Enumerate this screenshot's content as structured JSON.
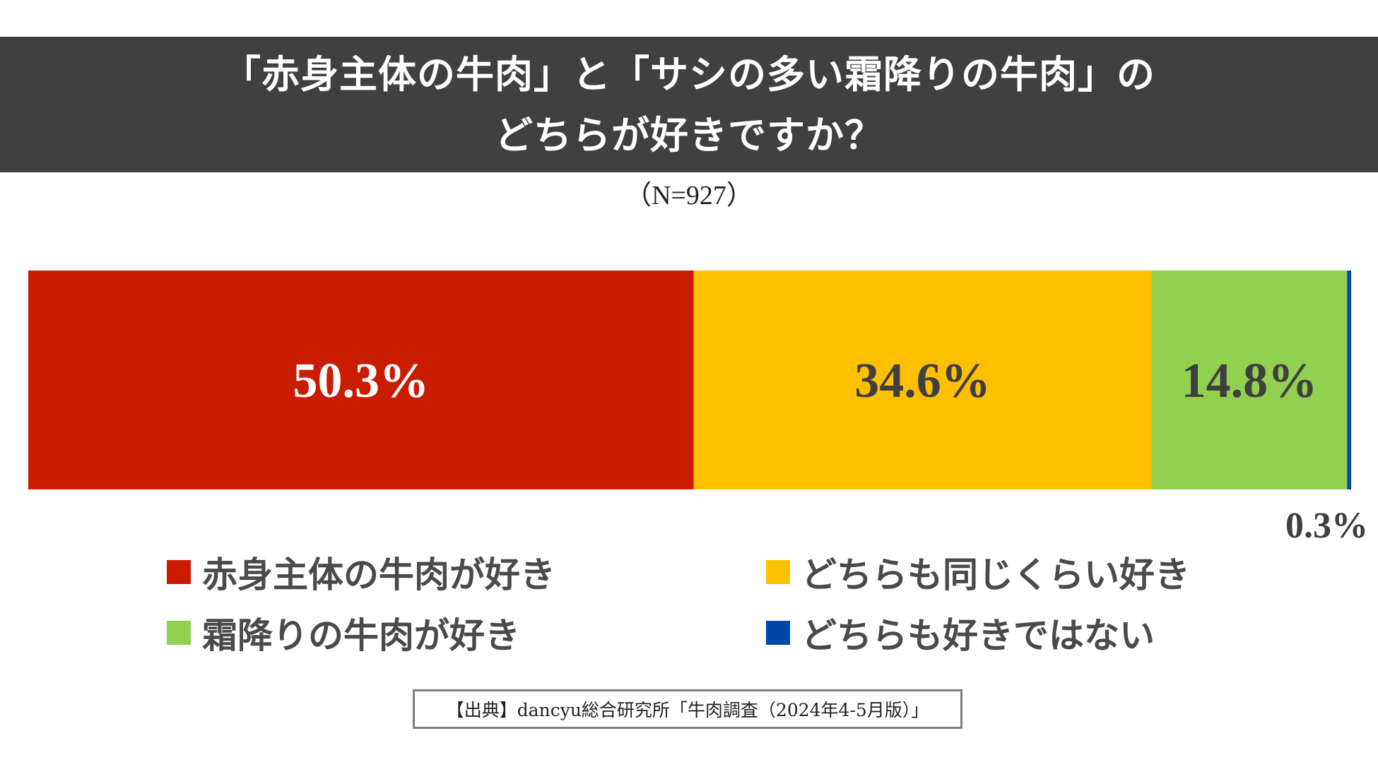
{
  "title": {
    "line1": "「赤身主体の牛肉」と「サシの多い霜降りの牛肉」の",
    "line2": "どちらが好きですか？"
  },
  "sample_size": "（N=927）",
  "chart_data": {
    "type": "bar",
    "orientation": "horizontal-stacked",
    "xlim": [
      0,
      100
    ],
    "unit": "%",
    "series": [
      {
        "name": "赤身主体の牛肉が好き",
        "value": 50.3,
        "label": "50.3%",
        "color": "#C91C00",
        "label_color": "#ffffff"
      },
      {
        "name": "どちらも同じくらい好き",
        "value": 34.6,
        "label": "34.6%",
        "color": "#FFC000",
        "label_color": "#3f3f3f"
      },
      {
        "name": "霜降りの牛肉が好き",
        "value": 14.8,
        "label": "14.8%",
        "color": "#92D050",
        "label_color": "#3f3f3f"
      },
      {
        "name": "どちらも好きではない",
        "value": 0.3,
        "label": "0.3%",
        "color": "#0047AB",
        "label_color": "#3f3f3f"
      }
    ],
    "legend_position": "bottom"
  },
  "source": "【出典】dancyu総合研究所「牛肉調査（2024年4-5月版）」"
}
